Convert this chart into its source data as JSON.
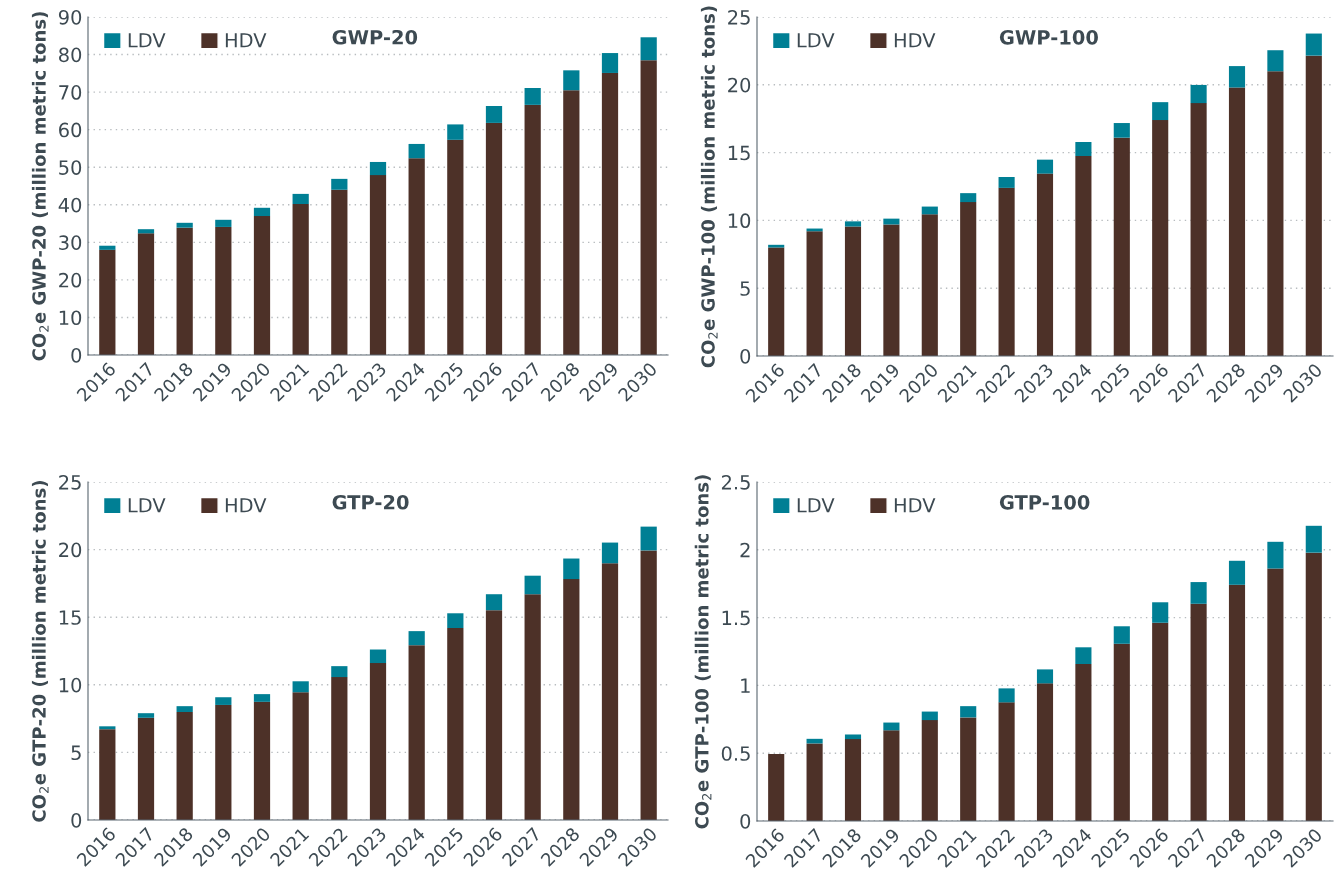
{
  "chart_data": [
    {
      "type": "bar",
      "title": "GWP-20",
      "ylabel": "CO$_{2}$e GWP-20 (million metric tons)",
      "stacked": true,
      "legend": "top left",
      "grid": "y",
      "categories": [
        "2016",
        "2017",
        "2018",
        "2019",
        "2020",
        "2021",
        "2022",
        "2023",
        "2024",
        "2025",
        "2026",
        "2027",
        "2028",
        "2029",
        "2030"
      ],
      "ylim": [
        0,
        90
      ],
      "yticks": [
        0,
        10,
        20,
        30,
        40,
        50,
        60,
        70,
        80,
        90
      ],
      "series": [
        {
          "name": "HDV",
          "color": "#4d3128",
          "values": [
            28.0,
            32.4,
            33.9,
            34.1,
            37.0,
            40.2,
            44.0,
            47.9,
            52.4,
            57.3,
            61.8,
            66.6,
            70.5,
            75.1,
            78.5
          ]
        },
        {
          "name": "LDV",
          "color": "#007f94",
          "values": [
            1.1,
            1.1,
            1.3,
            1.9,
            2.2,
            2.7,
            2.9,
            3.5,
            3.8,
            4.1,
            4.5,
            4.5,
            5.3,
            5.3,
            6.1
          ]
        }
      ]
    },
    {
      "type": "bar",
      "title": "GWP-100",
      "ylabel": "CO$_{2}$e GWP-100 (million metric tons)",
      "stacked": true,
      "legend": "top left",
      "grid": "y",
      "categories": [
        "2016",
        "2017",
        "2018",
        "2019",
        "2020",
        "2021",
        "2022",
        "2023",
        "2024",
        "2025",
        "2026",
        "2027",
        "2028",
        "2029",
        "2030"
      ],
      "ylim": [
        0,
        25
      ],
      "yticks": [
        0,
        5,
        10,
        15,
        20,
        25
      ],
      "series": [
        {
          "name": "HDV",
          "color": "#4d3128",
          "values": [
            8.0,
            9.2,
            9.55,
            9.7,
            10.45,
            11.35,
            12.4,
            13.45,
            14.75,
            16.1,
            17.4,
            18.65,
            19.8,
            21.0,
            22.15
          ]
        },
        {
          "name": "LDV",
          "color": "#007f94",
          "values": [
            0.2,
            0.2,
            0.38,
            0.43,
            0.57,
            0.66,
            0.8,
            1.03,
            1.03,
            1.08,
            1.32,
            1.34,
            1.58,
            1.55,
            1.63
          ]
        }
      ]
    },
    {
      "type": "bar",
      "title": "GTP-20",
      "ylabel": "CO$_{2}$e GTP-20 (million metric tons)",
      "stacked": true,
      "legend": "top left",
      "grid": "y",
      "categories": [
        "2016",
        "2017",
        "2018",
        "2019",
        "2020",
        "2021",
        "2022",
        "2023",
        "2024",
        "2025",
        "2026",
        "2027",
        "2028",
        "2029",
        "2030"
      ],
      "ylim": [
        0,
        25
      ],
      "yticks": [
        0,
        5,
        10,
        15,
        20,
        25
      ],
      "series": [
        {
          "name": "HDV",
          "color": "#4d3128",
          "values": [
            6.72,
            7.56,
            7.99,
            8.51,
            8.74,
            9.45,
            10.57,
            11.61,
            12.93,
            14.2,
            15.52,
            16.7,
            17.82,
            18.99,
            19.94
          ]
        },
        {
          "name": "LDV",
          "color": "#007f94",
          "values": [
            0.21,
            0.34,
            0.43,
            0.57,
            0.57,
            0.81,
            0.81,
            1.0,
            1.04,
            1.09,
            1.18,
            1.37,
            1.52,
            1.53,
            1.76
          ]
        }
      ]
    },
    {
      "type": "bar",
      "title": "GTP-100",
      "ylabel": "CO$_{2}$e GTP-100 (million metric tons)",
      "stacked": true,
      "legend": "top left",
      "grid": "y",
      "categories": [
        "2016",
        "2017",
        "2018",
        "2019",
        "2020",
        "2021",
        "2022",
        "2023",
        "2024",
        "2025",
        "2026",
        "2027",
        "2028",
        "2029",
        "2030"
      ],
      "ylim": [
        0,
        2.5
      ],
      "yticks": [
        0,
        0.5,
        1,
        1.5,
        2,
        2.5
      ],
      "series": [
        {
          "name": "HDV",
          "color": "#4d3128",
          "values": [
            0.495,
            0.572,
            0.604,
            0.669,
            0.744,
            0.764,
            0.875,
            1.015,
            1.158,
            1.307,
            1.462,
            1.602,
            1.742,
            1.862,
            1.979
          ]
        },
        {
          "name": "LDV",
          "color": "#007f94",
          "values": [
            0.0,
            0.034,
            0.034,
            0.057,
            0.063,
            0.083,
            0.103,
            0.103,
            0.123,
            0.129,
            0.151,
            0.16,
            0.177,
            0.197,
            0.198
          ]
        }
      ]
    }
  ]
}
